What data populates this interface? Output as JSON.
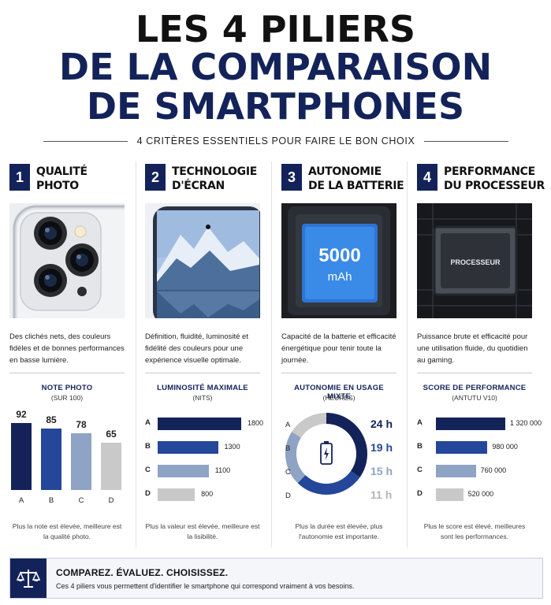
{
  "header": {
    "line1": "LES 4 PILIERS",
    "line2": "DE LA COMPARAISON",
    "line3": "DE SMARTPHONES",
    "subtitle": "4 CRITÈRES ESSENTIELS POUR FAIRE LE BON CHOIX"
  },
  "pillars": [
    {
      "num": "1",
      "title": "QUALITÉ\nPHOTO",
      "image": "smartphone-camera",
      "desc": "Des clichés nets, des couleurs fidèles et de bonnes performances en basse lumière.",
      "chart_title": "NOTE PHOTO",
      "chart_sub": "(SUR 100)",
      "footer": "Plus la note est élevée, meilleure est la qualité photo."
    },
    {
      "num": "2",
      "title": "TECHNOLOGIE\nD'ÉCRAN",
      "image": "smartphone-screen-mountain",
      "desc": "Définition, fluidité, luminosité et fidélité des couleurs pour une expérience visuelle optimale.",
      "chart_title": "LUMINOSITÉ MAXIMALE",
      "chart_sub": "(NITS)",
      "footer": "Plus la valeur est élevée, meilleure est la lisibilité."
    },
    {
      "num": "3",
      "title": "AUTONOMIE\nDE LA BATTERIE",
      "image": "battery",
      "image_text_1": "5000",
      "image_text_2": "mAh",
      "desc": "Capacité de la batterie et efficacité énergétique pour tenir toute la journée.",
      "chart_title": "AUTONOMIE EN USAGE MIXTE",
      "chart_sub": "(HEURES)",
      "footer": "Plus la durée est élevée, plus l'autonomie est importante."
    },
    {
      "num": "4",
      "title": "PERFORMANCE\nDU PROCESSEUR",
      "image": "processor-chip",
      "image_text": "PROCESSEUR",
      "desc": "Puissance brute et efficacité pour une utilisation fluide, du quotidien au gaming.",
      "chart_title": "SCORE DE PERFORMANCE",
      "chart_sub": "(ANTUTU V10)",
      "footer": "Plus le score est élevé, meilleures sont les performances."
    }
  ],
  "chart_data": [
    {
      "type": "bar",
      "title": "NOTE PHOTO",
      "subtitle": "(SUR 100)",
      "categories": [
        "A",
        "B",
        "C",
        "D"
      ],
      "values": [
        92,
        85,
        78,
        65
      ],
      "labels": [
        "92",
        "85",
        "78",
        "65"
      ],
      "ylim": [
        0,
        100
      ],
      "colors": [
        "#13235a",
        "#24479a",
        "#8fa3c4",
        "#c9c9c9"
      ]
    },
    {
      "type": "bar",
      "orientation": "horizontal",
      "title": "LUMINOSITÉ MAXIMALE",
      "subtitle": "(NITS)",
      "categories": [
        "A",
        "B",
        "C",
        "D"
      ],
      "values": [
        1800,
        1300,
        1100,
        800
      ],
      "labels": [
        "1800",
        "1300",
        "1100",
        "800"
      ],
      "xlim": [
        0,
        1800
      ],
      "colors": [
        "#13235a",
        "#24479a",
        "#8fa3c4",
        "#c9c9c9"
      ]
    },
    {
      "type": "pie",
      "title": "AUTONOMIE EN USAGE MIXTE",
      "subtitle": "(HEURES)",
      "categories": [
        "A",
        "B",
        "C",
        "D"
      ],
      "values": [
        24,
        19,
        15,
        11
      ],
      "labels": [
        "24 h",
        "19 h",
        "15 h",
        "11 h"
      ],
      "colors": [
        "#13235a",
        "#24479a",
        "#8fa3c4",
        "#c9c9c9"
      ]
    },
    {
      "type": "bar",
      "orientation": "horizontal",
      "title": "SCORE DE PERFORMANCE",
      "subtitle": "(ANTUTU V10)",
      "categories": [
        "A",
        "B",
        "C",
        "D"
      ],
      "values": [
        1320000,
        980000,
        760000,
        520000
      ],
      "labels": [
        "1 320 000",
        "980 000",
        "760 000",
        "520 000"
      ],
      "xlim": [
        0,
        1320000
      ],
      "colors": [
        "#13235a",
        "#24479a",
        "#8fa3c4",
        "#c9c9c9"
      ]
    }
  ],
  "banner": {
    "icon": "scales-icon",
    "heading": "COMPAREZ. ÉVALUEZ. CHOISISSEZ.",
    "text": "Ces 4 piliers vous permettent d'identifier le smartphone qui correspond vraiment à vos besoins."
  }
}
